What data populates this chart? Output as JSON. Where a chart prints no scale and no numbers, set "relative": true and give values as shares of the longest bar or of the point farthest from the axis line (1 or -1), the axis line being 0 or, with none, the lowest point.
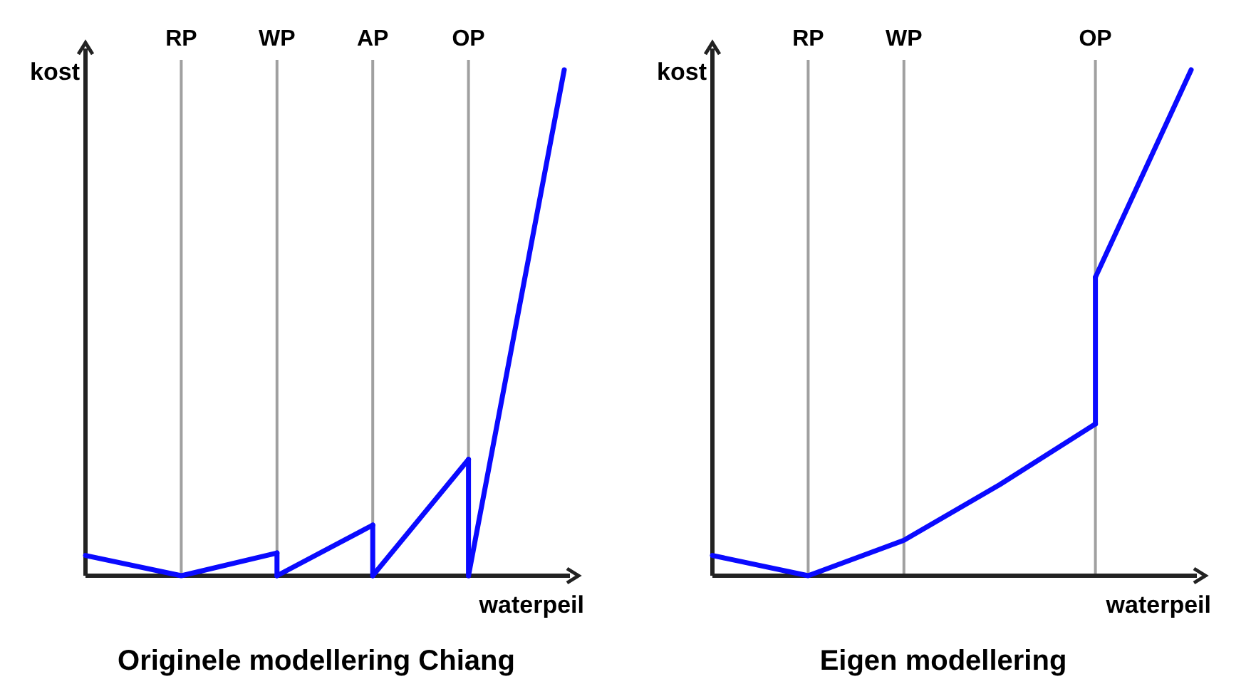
{
  "chart_data": [
    {
      "type": "line",
      "title": "Originele modellering Chiang",
      "xlabel": "waterpeil",
      "ylabel": "kost",
      "relative": true,
      "categories": [
        null,
        "RP",
        "WP",
        "AP",
        "OP",
        null
      ],
      "tick_labels": "x",
      "grid": "x",
      "marker": "none",
      "line_style": "solid",
      "series": [
        {
          "color": "#0a0aff",
          "values": [
            0.04,
            0,
            0.045,
            null,
            null,
            null
          ]
        },
        {
          "color": "#0a0aff",
          "values": [
            null,
            null,
            0,
            0.1,
            null,
            null
          ]
        },
        {
          "color": "#0a0aff",
          "values": [
            null,
            null,
            null,
            0,
            0.23,
            null
          ]
        },
        {
          "color": "#0a0aff",
          "values": [
            null,
            null,
            null,
            null,
            0,
            1
          ]
        }
      ]
    },
    {
      "type": "line",
      "title": "Eigen modellering",
      "xlabel": "waterpeil",
      "ylabel": "kost",
      "relative": true,
      "categories": [
        null,
        "RP",
        "WP",
        null,
        "OP",
        null
      ],
      "tick_labels": "x",
      "grid": "x",
      "marker": "none",
      "line_style": "solid",
      "series": [
        {
          "color": "#0a0aff",
          "values": [
            0.04,
            0,
            0.07,
            0.18,
            0.3,
            null
          ]
        },
        {
          "color": "#0a0aff",
          "values": [
            null,
            null,
            null,
            null,
            0.59,
            1
          ]
        }
      ]
    }
  ]
}
